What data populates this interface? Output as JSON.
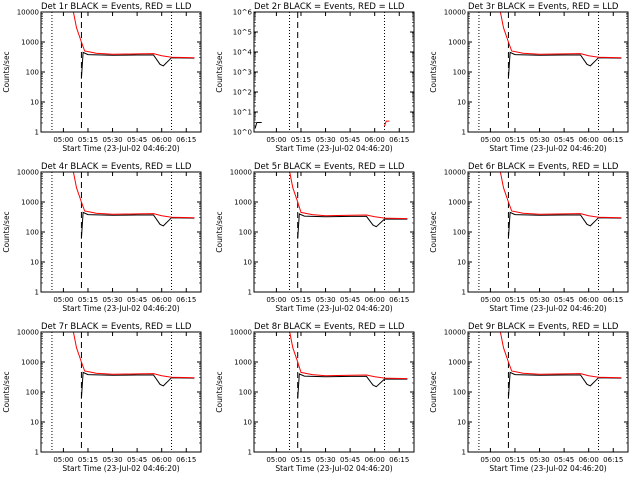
{
  "x_ticks": [
    "05:00",
    "05:15",
    "05:30",
    "05:45",
    "06:00",
    "06:15"
  ],
  "x_axis_label": "Start Time (23-Jul-02 04:46:20)",
  "y_axis_label": "Counts/sec",
  "colors": {
    "events": "#000000",
    "lld": "#ff0000"
  },
  "chart_data": [
    {
      "type": "line",
      "title": "Det 1r  BLACK = Events, RED = LLD",
      "ylim": [
        1,
        10000
      ],
      "yscale": "log",
      "y_ticks": [
        "1",
        "10",
        "100",
        "1000",
        "10000"
      ],
      "xlim_hours": [
        4.772,
        6.4
      ],
      "markers_dotted": [
        "04:53",
        "06:06"
      ],
      "marker_dashed": "05:11",
      "series": [
        {
          "name": "Events",
          "x": [
            "05:11",
            "05:12",
            "05:15",
            "05:30",
            "05:45",
            "05:55",
            "05:59",
            "06:01",
            "06:06",
            "06:20"
          ],
          "values": [
            60,
            450,
            380,
            360,
            370,
            370,
            180,
            160,
            300,
            290
          ]
        },
        {
          "name": "LLD",
          "x": [
            "05:05",
            "05:08",
            "05:11",
            "05:13",
            "05:20",
            "05:30",
            "05:45",
            "05:55",
            "06:00",
            "06:06",
            "06:20"
          ],
          "values": [
            20000,
            3000,
            1000,
            500,
            420,
            390,
            400,
            410,
            350,
            310,
            300
          ]
        }
      ]
    },
    {
      "type": "line",
      "title": "Det 2r  BLACK = Events, RED = LLD",
      "ylim": [
        1,
        1000000
      ],
      "yscale": "log",
      "y_ticks": [
        "10^0",
        "10^1",
        "10^2",
        "10^3",
        "10^4",
        "10^5",
        "10^6"
      ],
      "xlim_hours": [
        4.772,
        6.4
      ],
      "markers_dotted": [
        "05:08",
        "06:06"
      ],
      "marker_dashed": "05:13",
      "series": [
        {
          "name": "Events",
          "x": [
            "04:47",
            "04:48",
            "04:51"
          ],
          "values": [
            1.5,
            3,
            3
          ]
        },
        {
          "name": "LLD",
          "x": [
            "06:06",
            "06:07",
            "06:09"
          ],
          "values": [
            2,
            3.5,
            3.5
          ]
        }
      ]
    },
    {
      "type": "line",
      "title": "Det 3r  BLACK = Events, RED = LLD",
      "ylim": [
        1,
        10000
      ],
      "yscale": "log",
      "y_ticks": [
        "1",
        "10",
        "100",
        "1000",
        "10000"
      ],
      "xlim_hours": [
        4.772,
        6.4
      ],
      "markers_dotted": [
        "04:53",
        "06:06"
      ],
      "marker_dashed": "05:11",
      "series": [
        {
          "name": "Events",
          "x": [
            "05:11",
            "05:12",
            "05:15",
            "05:30",
            "05:45",
            "05:55",
            "05:59",
            "06:01",
            "06:06",
            "06:20"
          ],
          "values": [
            60,
            450,
            380,
            360,
            370,
            370,
            180,
            160,
            300,
            290
          ]
        },
        {
          "name": "LLD",
          "x": [
            "05:05",
            "05:08",
            "05:11",
            "05:13",
            "05:20",
            "05:30",
            "05:45",
            "05:55",
            "06:00",
            "06:06",
            "06:20"
          ],
          "values": [
            20000,
            3000,
            1000,
            500,
            420,
            390,
            400,
            410,
            350,
            310,
            300
          ]
        }
      ]
    },
    {
      "type": "line",
      "title": "Det 4r  BLACK = Events, RED = LLD",
      "ylim": [
        1,
        10000
      ],
      "yscale": "log",
      "y_ticks": [
        "1",
        "10",
        "100",
        "1000",
        "10000"
      ],
      "xlim_hours": [
        4.772,
        6.4
      ],
      "markers_dotted": [
        "04:53",
        "06:06"
      ],
      "marker_dashed": "05:11",
      "series": [
        {
          "name": "Events",
          "x": [
            "05:11",
            "05:12",
            "05:15",
            "05:30",
            "05:45",
            "05:55",
            "05:59",
            "06:01",
            "06:06",
            "06:20"
          ],
          "values": [
            60,
            450,
            380,
            360,
            370,
            370,
            180,
            160,
            300,
            290
          ]
        },
        {
          "name": "LLD",
          "x": [
            "05:05",
            "05:08",
            "05:11",
            "05:13",
            "05:20",
            "05:30",
            "05:45",
            "05:55",
            "06:00",
            "06:06",
            "06:20"
          ],
          "values": [
            20000,
            3000,
            1000,
            500,
            420,
            390,
            400,
            410,
            350,
            310,
            300
          ]
        }
      ]
    },
    {
      "type": "line",
      "title": "Det 5r  BLACK = Events, RED = LLD",
      "ylim": [
        1,
        10000
      ],
      "yscale": "log",
      "y_ticks": [
        "1",
        "10",
        "100",
        "1000",
        "10000"
      ],
      "xlim_hours": [
        4.772,
        6.4
      ],
      "markers_dotted": [
        "05:08",
        "06:06"
      ],
      "marker_dashed": "05:13",
      "series": [
        {
          "name": "Events",
          "x": [
            "05:13",
            "05:14",
            "05:17",
            "05:30",
            "05:45",
            "05:55",
            "05:59",
            "06:01",
            "06:06",
            "06:20"
          ],
          "values": [
            60,
            400,
            340,
            320,
            330,
            330,
            170,
            150,
            270,
            270
          ]
        },
        {
          "name": "LLD",
          "x": [
            "05:07",
            "05:10",
            "05:13",
            "05:15",
            "05:22",
            "05:30",
            "05:45",
            "05:55",
            "06:00",
            "06:06",
            "06:20"
          ],
          "values": [
            20000,
            3000,
            1000,
            450,
            380,
            350,
            360,
            370,
            320,
            290,
            280
          ]
        }
      ]
    },
    {
      "type": "line",
      "title": "Det 6r  BLACK = Events, RED = LLD",
      "ylim": [
        1,
        10000
      ],
      "yscale": "log",
      "y_ticks": [
        "1",
        "10",
        "100",
        "1000",
        "10000"
      ],
      "xlim_hours": [
        4.772,
        6.4
      ],
      "markers_dotted": [
        "04:53",
        "06:06"
      ],
      "marker_dashed": "05:11",
      "series": [
        {
          "name": "Events",
          "x": [
            "05:11",
            "05:12",
            "05:15",
            "05:30",
            "05:45",
            "05:55",
            "05:59",
            "06:01",
            "06:06",
            "06:20"
          ],
          "values": [
            60,
            450,
            380,
            360,
            370,
            370,
            180,
            160,
            300,
            290
          ]
        },
        {
          "name": "LLD",
          "x": [
            "05:05",
            "05:08",
            "05:11",
            "05:13",
            "05:20",
            "05:30",
            "05:45",
            "05:55",
            "06:00",
            "06:06",
            "06:20"
          ],
          "values": [
            20000,
            3000,
            1000,
            500,
            420,
            390,
            400,
            410,
            350,
            310,
            300
          ]
        }
      ]
    },
    {
      "type": "line",
      "title": "Det 7r  BLACK = Events, RED = LLD",
      "ylim": [
        1,
        10000
      ],
      "yscale": "log",
      "y_ticks": [
        "1",
        "10",
        "100",
        "1000",
        "10000"
      ],
      "xlim_hours": [
        4.772,
        6.4
      ],
      "markers_dotted": [
        "04:53",
        "06:06"
      ],
      "marker_dashed": "05:11",
      "series": [
        {
          "name": "Events",
          "x": [
            "05:11",
            "05:12",
            "05:15",
            "05:30",
            "05:45",
            "05:55",
            "05:59",
            "06:01",
            "06:06",
            "06:20"
          ],
          "values": [
            60,
            450,
            380,
            360,
            370,
            370,
            180,
            160,
            300,
            290
          ]
        },
        {
          "name": "LLD",
          "x": [
            "05:05",
            "05:08",
            "05:11",
            "05:13",
            "05:20",
            "05:30",
            "05:45",
            "05:55",
            "06:00",
            "06:06",
            "06:20"
          ],
          "values": [
            20000,
            3000,
            1000,
            500,
            420,
            390,
            400,
            410,
            350,
            310,
            300
          ]
        }
      ]
    },
    {
      "type": "line",
      "title": "Det 8r  BLACK = Events, RED = LLD",
      "ylim": [
        1,
        10000
      ],
      "yscale": "log",
      "y_ticks": [
        "1",
        "10",
        "100",
        "1000",
        "10000"
      ],
      "xlim_hours": [
        4.772,
        6.4
      ],
      "markers_dotted": [
        "05:08",
        "06:06"
      ],
      "marker_dashed": "05:13",
      "series": [
        {
          "name": "Events",
          "x": [
            "05:13",
            "05:14",
            "05:17",
            "05:30",
            "05:45",
            "05:55",
            "05:59",
            "06:01",
            "06:06",
            "06:20"
          ],
          "values": [
            60,
            400,
            340,
            320,
            330,
            330,
            170,
            150,
            270,
            270
          ]
        },
        {
          "name": "LLD",
          "x": [
            "05:07",
            "05:10",
            "05:13",
            "05:15",
            "05:22",
            "05:30",
            "05:45",
            "05:55",
            "06:00",
            "06:06",
            "06:20"
          ],
          "values": [
            20000,
            3000,
            1000,
            450,
            380,
            350,
            360,
            370,
            320,
            290,
            280
          ]
        }
      ]
    },
    {
      "type": "line",
      "title": "Det 9r  BLACK = Events, RED = LLD",
      "ylim": [
        1,
        10000
      ],
      "yscale": "log",
      "y_ticks": [
        "1",
        "10",
        "100",
        "1000",
        "10000"
      ],
      "xlim_hours": [
        4.772,
        6.4
      ],
      "markers_dotted": [
        "04:53",
        "06:06"
      ],
      "marker_dashed": "05:11",
      "series": [
        {
          "name": "Events",
          "x": [
            "05:11",
            "05:12",
            "05:15",
            "05:30",
            "05:45",
            "05:55",
            "05:59",
            "06:01",
            "06:06",
            "06:20"
          ],
          "values": [
            60,
            450,
            380,
            360,
            370,
            370,
            180,
            160,
            300,
            290
          ]
        },
        {
          "name": "LLD",
          "x": [
            "05:05",
            "05:08",
            "05:11",
            "05:13",
            "05:20",
            "05:30",
            "05:45",
            "05:55",
            "06:00",
            "06:06",
            "06:20"
          ],
          "values": [
            20000,
            3000,
            1000,
            500,
            420,
            390,
            400,
            410,
            350,
            310,
            300
          ]
        }
      ]
    }
  ]
}
